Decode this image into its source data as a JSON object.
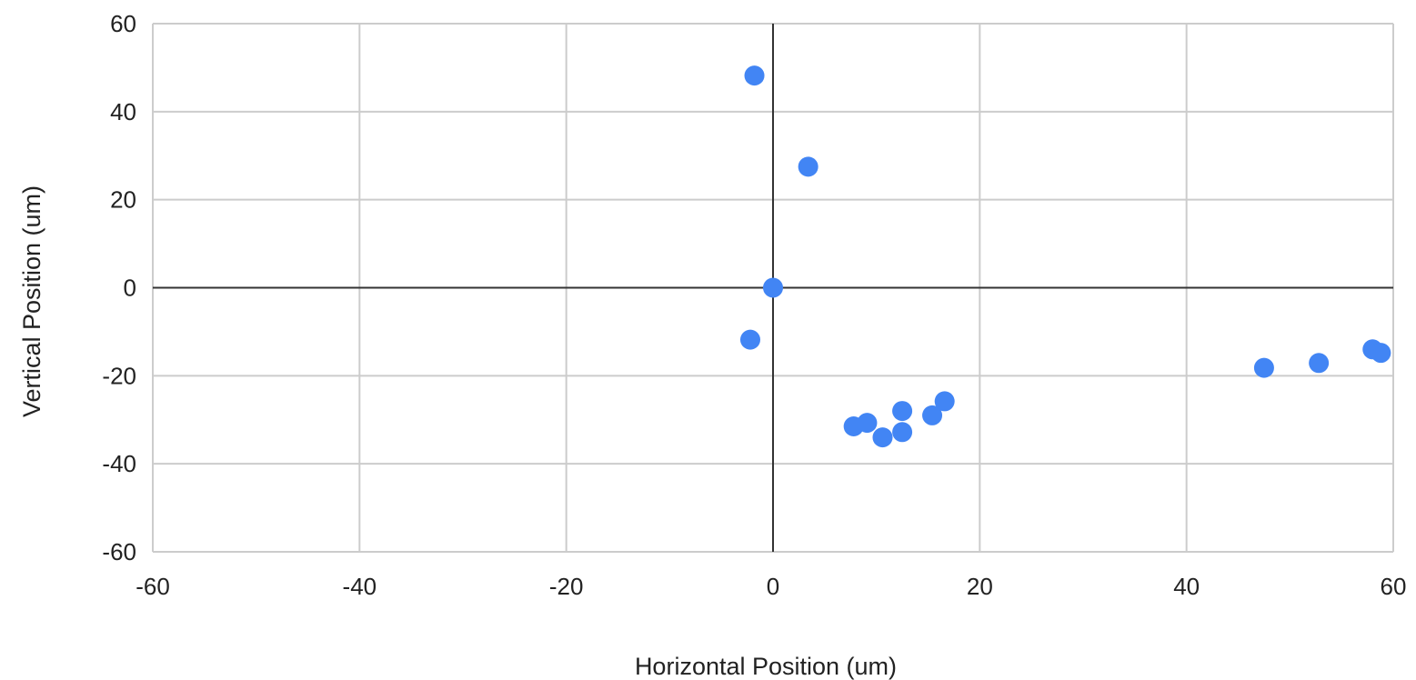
{
  "chart_data": {
    "type": "scatter",
    "title": "",
    "xlabel": "Horizontal Position (um)",
    "ylabel": "Vertical Position (um)",
    "xlim": [
      -60,
      60
    ],
    "ylim": [
      -60,
      60
    ],
    "x_ticks": [
      -60,
      -40,
      -20,
      0,
      20,
      40,
      60
    ],
    "y_ticks": [
      -60,
      -40,
      -20,
      0,
      20,
      40,
      60
    ],
    "x_tick_labels": [
      "-60",
      "-40",
      "-20",
      "0",
      "20",
      "40",
      "60"
    ],
    "y_tick_labels": [
      "-60",
      "-40",
      "-20",
      "0",
      "20",
      "40",
      "60"
    ],
    "grid": true,
    "legend": "none",
    "colors": {
      "points": "#4285F4",
      "grid": "#cccccc",
      "zero_axis": "#333333",
      "text": "#222222"
    },
    "series": [
      {
        "points": [
          {
            "x": -1.8,
            "y": 48.2
          },
          {
            "x": 3.4,
            "y": 27.5
          },
          {
            "x": 0.0,
            "y": 0.0
          },
          {
            "x": -2.2,
            "y": -11.8
          },
          {
            "x": 7.8,
            "y": -31.5
          },
          {
            "x": 9.1,
            "y": -30.7
          },
          {
            "x": 10.6,
            "y": -34.0
          },
          {
            "x": 12.5,
            "y": -28.0
          },
          {
            "x": 12.5,
            "y": -32.8
          },
          {
            "x": 15.4,
            "y": -29.0
          },
          {
            "x": 16.6,
            "y": -25.8
          },
          {
            "x": 47.5,
            "y": -18.2
          },
          {
            "x": 52.8,
            "y": -17.1
          },
          {
            "x": 58.0,
            "y": -14.0
          },
          {
            "x": 58.8,
            "y": -14.8
          }
        ]
      }
    ]
  }
}
